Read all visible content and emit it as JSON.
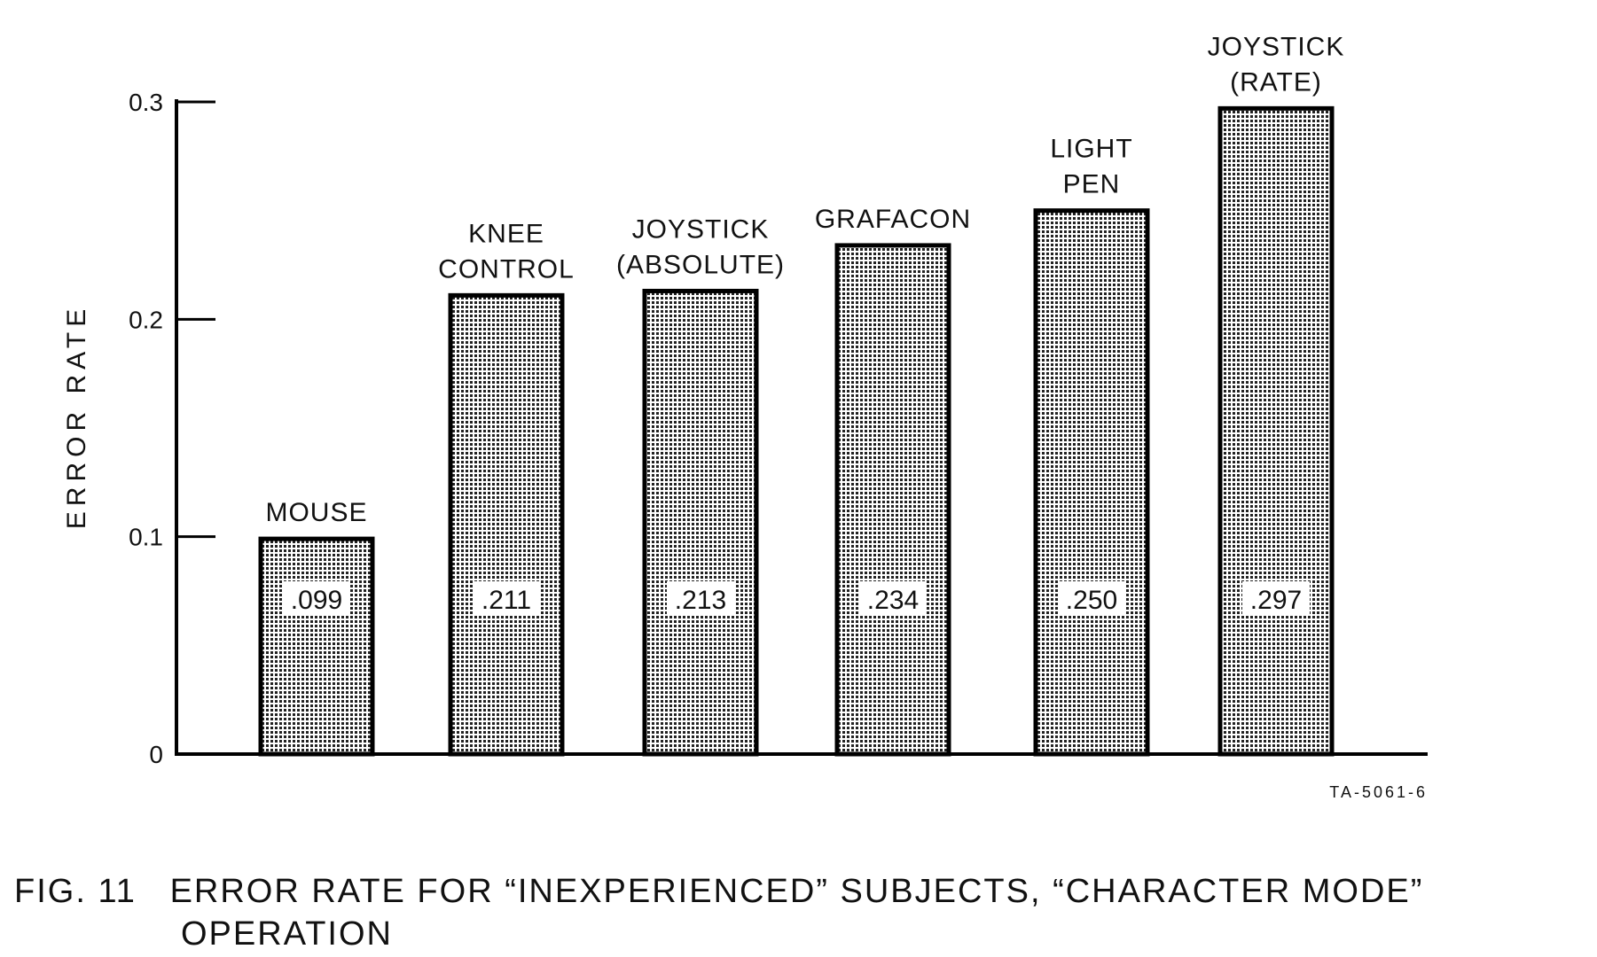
{
  "chart_data": {
    "type": "bar",
    "categories": [
      [
        "MOUSE"
      ],
      [
        "KNEE",
        "CONTROL"
      ],
      [
        "JOYSTICK",
        "(ABSOLUTE)"
      ],
      [
        "GRAFACON"
      ],
      [
        "LIGHT",
        "PEN"
      ],
      [
        "JOYSTICK",
        "(RATE)"
      ]
    ],
    "values": [
      0.099,
      0.211,
      0.213,
      0.234,
      0.25,
      0.297
    ],
    "value_labels": [
      ".099",
      ".211",
      ".213",
      ".234",
      ".250",
      ".297"
    ],
    "ylabel": "ERROR RATE",
    "xlabel": "",
    "ylim": [
      0,
      0.3
    ],
    "yticks": [
      0,
      0.1,
      0.2,
      0.3
    ],
    "ytick_labels": [
      "0",
      "0.1",
      "0.2",
      "0.3"
    ],
    "grid": false,
    "bar_fill": "dotted-screen",
    "note": "TA-5061-6",
    "caption_line1": "FIG. 11   ERROR RATE FOR “INEXPERIENCED” SUBJECTS, “CHARACTER MODE”",
    "caption_line2": "OPERATION"
  }
}
